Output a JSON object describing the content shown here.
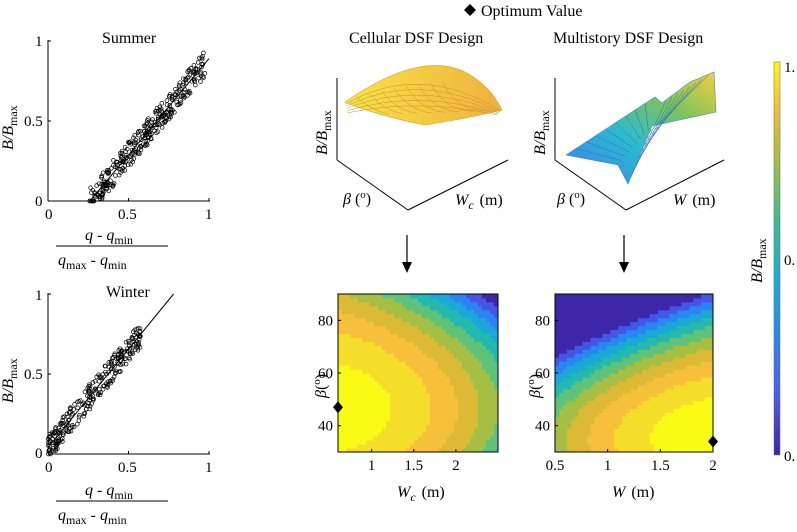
{
  "legend": {
    "symbol": "diamond",
    "label": "Optimum Value"
  },
  "colorbar": {
    "label_main": "B/B",
    "label_sub": "max",
    "tick_top": "1.",
    "tick_mid": "0.",
    "tick_bottom": "0."
  },
  "col_titles": {
    "cellular": "Cellular DSF Design",
    "multistory": "Multistory DSF Design"
  },
  "chart_data": [
    {
      "id": "summer",
      "type": "scatter",
      "title": "Summer",
      "xlim": [
        0,
        1
      ],
      "ylim": [
        0,
        1
      ],
      "xticks": [
        "0",
        "0.5",
        "1"
      ],
      "yticks": [
        "0",
        "0.5",
        "1"
      ],
      "xlabel": {
        "num": "q - q",
        "num_sub": "min",
        "den": "q",
        "den_sub1": "max",
        "den_mid": " - q",
        "den_sub2": "min"
      },
      "ylabel": {
        "main": "B/B",
        "sub": "max"
      },
      "fit_line": {
        "x": [
          0.26,
          1.0
        ],
        "y": [
          0.0,
          0.89
        ]
      },
      "points": {
        "x_range": [
          0.26,
          0.98
        ],
        "trend": "linear",
        "n": 320
      }
    },
    {
      "id": "winter",
      "type": "scatter",
      "title": "Winter",
      "xlim": [
        0,
        1
      ],
      "ylim": [
        0,
        1
      ],
      "xticks": [
        "0",
        "0.5",
        "1"
      ],
      "yticks": [
        "0",
        "0.5",
        "1"
      ],
      "xlabel": {
        "num": "q - q",
        "num_sub": "min",
        "den": "q",
        "den_sub1": "max",
        "den_mid": " - q",
        "den_sub2": "min"
      },
      "ylabel": {
        "main": "B/B",
        "sub": "max"
      },
      "fit_line": {
        "x": [
          0.0,
          0.78
        ],
        "y": [
          0.04,
          1.0
        ]
      },
      "points": {
        "x_range": [
          0.0,
          0.58
        ],
        "trend": "linear",
        "n": 260
      }
    },
    {
      "id": "cellular-surface",
      "type": "surface",
      "zlabel": {
        "main": "B/B",
        "sub": "max"
      },
      "xlabel": {
        "sym": "W",
        "sub": "c",
        "unit": "(m)"
      },
      "ylabel": {
        "sym": "β",
        "unit": "(",
        "sup": "o",
        "close": ")"
      }
    },
    {
      "id": "multistory-surface",
      "type": "surface",
      "zlabel": {
        "main": "B/B",
        "sub": "max"
      },
      "xlabel": {
        "sym": "W",
        "unit": "(m)"
      },
      "ylabel": {
        "sym": "β",
        "unit": "(",
        "sup": "o",
        "close": ")"
      }
    },
    {
      "id": "cellular-contour",
      "type": "heatmap",
      "xlim": [
        0.6,
        2.5
      ],
      "ylim": [
        30,
        90
      ],
      "xticks": [
        "1",
        "1.5",
        "2"
      ],
      "yticks": [
        "40",
        "60",
        "80"
      ],
      "xlabel": {
        "sym": "W",
        "sub": "c",
        "unit": "(m)"
      },
      "ylabel": {
        "sym": "β",
        "unit": "(",
        "sup": "o",
        "close": ")"
      },
      "optimum": {
        "x": 0.6,
        "y": 47
      },
      "levels": 10
    },
    {
      "id": "multistory-contour",
      "type": "heatmap",
      "xlim": [
        0.5,
        2.0
      ],
      "ylim": [
        30,
        90
      ],
      "xticks": [
        "0.5",
        "1",
        "1.5",
        "2"
      ],
      "yticks": [
        "40",
        "60",
        "80"
      ],
      "xlabel": {
        "sym": "W",
        "unit": "(m)"
      },
      "ylabel": {
        "sym": "β",
        "unit": "(",
        "sup": "o",
        "close": ")"
      },
      "optimum": {
        "x": 2.0,
        "y": 34
      },
      "levels": 10
    }
  ]
}
